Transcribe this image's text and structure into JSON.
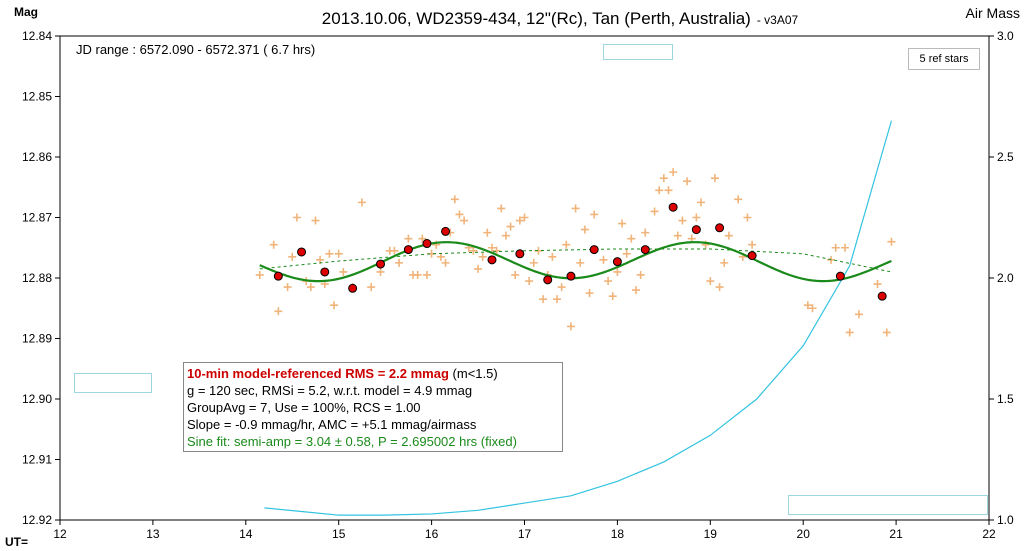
{
  "chart_data": {
    "type": "scatter",
    "title": "2013.10.06, WD2359-434, 12\"(Rc), Tan (Perth, Australia)",
    "version": "- v3A07",
    "ylabel_left": "Mag",
    "ylabel_right": "Air Mass",
    "xlabel": "UT=",
    "xlim": [
      12,
      22
    ],
    "ylim": [
      12.84,
      12.92
    ],
    "y_inverted": true,
    "y2lim": [
      1.0,
      3.0
    ],
    "x_ticks": [
      "12",
      "13",
      "14",
      "15",
      "16",
      "17",
      "18",
      "19",
      "20",
      "21",
      "22"
    ],
    "y_ticks": [
      "12.84",
      "12.85",
      "12.86",
      "12.87",
      "12.88",
      "12.89",
      "12.90",
      "12.91",
      "12.92"
    ],
    "y2_ticks": [
      "3.0",
      "2.5",
      "2.0",
      "1.5",
      "1.0"
    ],
    "grid": false,
    "series": [
      {
        "kind": "raw-points",
        "color": "#f0b47a",
        "points": [
          [
            14.15,
            12.8795
          ],
          [
            14.3,
            12.8745
          ],
          [
            14.35,
            12.8855
          ],
          [
            14.45,
            12.8815
          ],
          [
            14.5,
            12.8765
          ],
          [
            14.55,
            12.87
          ],
          [
            14.65,
            12.8805
          ],
          [
            14.7,
            12.8815
          ],
          [
            14.75,
            12.8705
          ],
          [
            14.8,
            12.877
          ],
          [
            14.85,
            12.881
          ],
          [
            14.9,
            12.876
          ],
          [
            14.95,
            12.8845
          ],
          [
            15.0,
            12.876
          ],
          [
            15.05,
            12.879
          ],
          [
            15.15,
            12.8815
          ],
          [
            15.25,
            12.8675
          ],
          [
            15.35,
            12.8815
          ],
          [
            15.45,
            12.879
          ],
          [
            15.55,
            12.8755
          ],
          [
            15.6,
            12.8755
          ],
          [
            15.65,
            12.8775
          ],
          [
            15.75,
            12.8735
          ],
          [
            15.8,
            12.8795
          ],
          [
            15.85,
            12.8795
          ],
          [
            15.9,
            12.8735
          ],
          [
            15.95,
            12.8795
          ],
          [
            16.0,
            12.876
          ],
          [
            16.05,
            12.8745
          ],
          [
            16.1,
            12.8765
          ],
          [
            16.15,
            12.8775
          ],
          [
            16.2,
            12.8725
          ],
          [
            16.25,
            12.867
          ],
          [
            16.3,
            12.8695
          ],
          [
            16.35,
            12.8705
          ],
          [
            16.4,
            12.875
          ],
          [
            16.45,
            12.8755
          ],
          [
            16.5,
            12.8785
          ],
          [
            16.55,
            12.8765
          ],
          [
            16.6,
            12.8725
          ],
          [
            16.65,
            12.875
          ],
          [
            16.7,
            12.8755
          ],
          [
            16.75,
            12.8685
          ],
          [
            16.8,
            12.873
          ],
          [
            16.85,
            12.8715
          ],
          [
            16.9,
            12.8795
          ],
          [
            16.95,
            12.8705
          ],
          [
            17.0,
            12.87
          ],
          [
            17.05,
            12.8805
          ],
          [
            17.1,
            12.8775
          ],
          [
            17.15,
            12.8755
          ],
          [
            17.2,
            12.8835
          ],
          [
            17.25,
            12.8795
          ],
          [
            17.3,
            12.8765
          ],
          [
            17.35,
            12.8835
          ],
          [
            17.4,
            12.8815
          ],
          [
            17.45,
            12.8745
          ],
          [
            17.5,
            12.888
          ],
          [
            17.55,
            12.8685
          ],
          [
            17.6,
            12.8775
          ],
          [
            17.65,
            12.872
          ],
          [
            17.7,
            12.8825
          ],
          [
            17.75,
            12.8695
          ],
          [
            17.85,
            12.877
          ],
          [
            17.9,
            12.8805
          ],
          [
            17.95,
            12.883
          ],
          [
            18.0,
            12.879
          ],
          [
            18.05,
            12.871
          ],
          [
            18.1,
            12.876
          ],
          [
            18.15,
            12.8735
          ],
          [
            18.2,
            12.882
          ],
          [
            18.25,
            12.8795
          ],
          [
            18.3,
            12.8725
          ],
          [
            18.4,
            12.869
          ],
          [
            18.45,
            12.8655
          ],
          [
            18.5,
            12.8635
          ],
          [
            18.55,
            12.8655
          ],
          [
            18.6,
            12.8625
          ],
          [
            18.65,
            12.873
          ],
          [
            18.7,
            12.8705
          ],
          [
            18.75,
            12.864
          ],
          [
            18.8,
            12.8735
          ],
          [
            18.85,
            12.87
          ],
          [
            18.9,
            12.8675
          ],
          [
            18.95,
            12.8745
          ],
          [
            19.0,
            12.8805
          ],
          [
            19.05,
            12.8635
          ],
          [
            19.1,
            12.8815
          ],
          [
            19.15,
            12.8775
          ],
          [
            19.2,
            12.873
          ],
          [
            19.3,
            12.867
          ],
          [
            19.35,
            12.8765
          ],
          [
            19.4,
            12.87
          ],
          [
            19.45,
            12.8745
          ],
          [
            20.05,
            12.8845
          ],
          [
            20.1,
            12.885
          ],
          [
            20.3,
            12.877
          ],
          [
            20.35,
            12.875
          ],
          [
            20.45,
            12.875
          ],
          [
            20.5,
            12.889
          ],
          [
            20.6,
            12.886
          ],
          [
            20.8,
            12.881
          ],
          [
            20.9,
            12.889
          ],
          [
            20.95,
            12.874
          ]
        ]
      },
      {
        "kind": "group-averages",
        "color": "#dd0000",
        "points": [
          [
            14.35,
            12.8797
          ],
          [
            14.6,
            12.8757
          ],
          [
            14.85,
            12.879
          ],
          [
            15.15,
            12.8817
          ],
          [
            15.45,
            12.8777
          ],
          [
            15.75,
            12.8753
          ],
          [
            15.95,
            12.8743
          ],
          [
            16.15,
            12.8723
          ],
          [
            16.65,
            12.877
          ],
          [
            16.95,
            12.876
          ],
          [
            17.25,
            12.8803
          ],
          [
            17.5,
            12.8797
          ],
          [
            17.75,
            12.8753
          ],
          [
            18.0,
            12.8773
          ],
          [
            18.3,
            12.8753
          ],
          [
            18.6,
            12.8683
          ],
          [
            18.85,
            12.872
          ],
          [
            19.1,
            12.8717
          ],
          [
            19.45,
            12.8763
          ],
          [
            20.4,
            12.8797
          ],
          [
            20.85,
            12.883
          ]
        ]
      },
      {
        "kind": "sine-fit",
        "color": "#1a8a1a",
        "period_hrs": 2.695002,
        "semi_amp_mmag": 3.04,
        "baseline": 12.877,
        "phase_peak_ut": 16.15
      },
      {
        "kind": "model-trend",
        "color": "#1a8a1a",
        "dashed": true,
        "points": [
          [
            14.15,
            12.8785
          ],
          [
            15.0,
            12.8772
          ],
          [
            16.0,
            12.876
          ],
          [
            17.0,
            12.8755
          ],
          [
            18.0,
            12.8752
          ],
          [
            19.0,
            12.8752
          ],
          [
            20.0,
            12.876
          ],
          [
            20.95,
            12.879
          ]
        ]
      },
      {
        "kind": "air-mass",
        "color": "#33c3e0",
        "axis": "right",
        "points": [
          [
            14.2,
            1.05
          ],
          [
            14.6,
            1.035
          ],
          [
            15.0,
            1.02
          ],
          [
            15.5,
            1.02
          ],
          [
            16.0,
            1.025
          ],
          [
            16.5,
            1.04
          ],
          [
            17.0,
            1.07
          ],
          [
            17.5,
            1.1
          ],
          [
            18.0,
            1.16
          ],
          [
            18.5,
            1.24
          ],
          [
            19.0,
            1.35
          ],
          [
            19.5,
            1.5
          ],
          [
            20.0,
            1.72
          ],
          [
            20.5,
            2.05
          ],
          [
            20.95,
            2.65
          ]
        ]
      }
    ]
  },
  "header": {
    "jd_range": "JD range : 6572.090 - 6572.371 ( 6.7 hrs)",
    "ref_stars": "5 ref stars"
  },
  "info": {
    "line1_highlight": "10-min model-referenced RMS = 2.2 mmag",
    "line1_suffix": "(m<1.5)",
    "line2": "g = 120 sec, RMSi = 5.2, w.r.t. model = 4.9 mmag",
    "line3": "GroupAvg = 7, Use = 100%, RCS = 1.00",
    "line4": "Slope = -0.9 mmag/hr, AMC = +5.1 mmag/airmass",
    "line5": "Sine fit: semi-amp = 3.04 ± 0.58, P = 2.695002 hrs (fixed)"
  }
}
